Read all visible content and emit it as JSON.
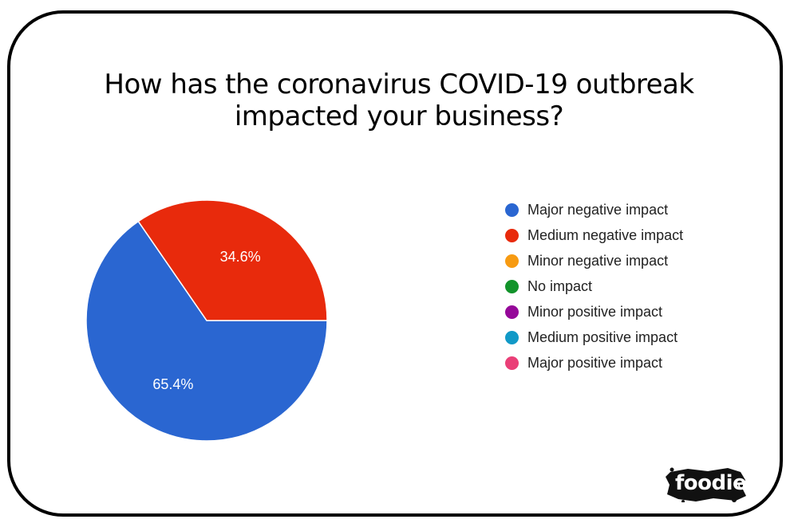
{
  "chart_data": {
    "type": "pie",
    "title_lines": [
      "How has the coronavirus COVID-19 outbreak",
      "impacted your business?"
    ],
    "slices": [
      {
        "name": "Major negative impact",
        "value": 65.4,
        "label": "65.4%",
        "color": "#2a66d1"
      },
      {
        "name": "Medium negative impact",
        "value": 34.6,
        "label": "34.6%",
        "color": "#e82a0c"
      },
      {
        "name": "Minor negative impact",
        "value": 0,
        "label": "",
        "color": "#f79b12"
      },
      {
        "name": "No impact",
        "value": 0,
        "label": "",
        "color": "#12932a"
      },
      {
        "name": "Minor positive impact",
        "value": 0,
        "label": "",
        "color": "#950899"
      },
      {
        "name": "Medium positive impact",
        "value": 0,
        "label": "",
        "color": "#1199c7"
      },
      {
        "name": "Major positive impact",
        "value": 0,
        "label": "",
        "color": "#ea3f77"
      }
    ],
    "legend_position": "right"
  },
  "logo": {
    "text": "foodie",
    "icon": "registered-mark-icon"
  }
}
